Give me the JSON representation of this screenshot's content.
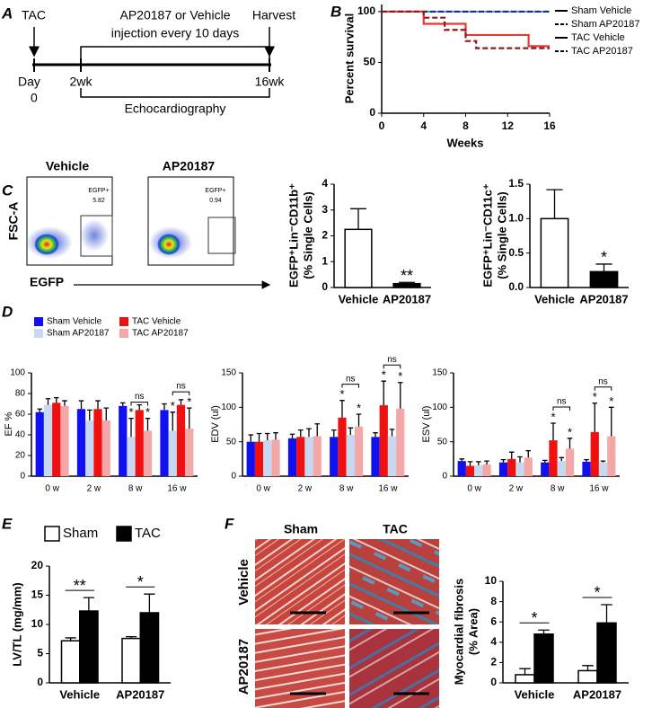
{
  "panels": [
    "A",
    "B",
    "C",
    "D",
    "E",
    "F"
  ],
  "timeline": {
    "start": "TAC",
    "treatment": [
      "AP20187 or Vehicle",
      "injection every 10 days"
    ],
    "end": "Harvest",
    "day_label": "Day",
    "day0": 0,
    "t1": "2wk",
    "t2": "16wk",
    "measure": "Echocardiography"
  },
  "flow": {
    "y_axis": "FSC-A",
    "x_axis": "EGFP",
    "gate": "EGFP+",
    "panels": [
      {
        "title": "Vehicle",
        "percent": 5.82
      },
      {
        "title": "AP20187",
        "percent": 0.94
      }
    ]
  },
  "histology": {
    "columns": [
      "Sham",
      "TAC"
    ],
    "rows": [
      "Vehicle",
      "AP20187"
    ]
  },
  "chart_data": [
    {
      "type": "line",
      "ylabel": "Percent survival",
      "xlabel": "Weeks",
      "xlim": [
        0,
        16
      ],
      "xticks": [
        0,
        4,
        8,
        12,
        16
      ],
      "ylim": [
        0,
        107
      ],
      "yticks": [
        0,
        50,
        100
      ],
      "legend": "upper right",
      "series": [
        {
          "name": "Sham Vehicle",
          "color": "#5b9bd5",
          "dash": false,
          "x": [
            0,
            16
          ],
          "values": [
            100,
            100
          ]
        },
        {
          "name": "Sham AP20187",
          "color": "#1c2f80",
          "dash": true,
          "x": [
            0,
            16
          ],
          "values": [
            100,
            100
          ]
        },
        {
          "name": "TAC Vehicle",
          "color": "#e53935",
          "dash": false,
          "x": [
            0,
            4,
            4,
            8,
            8,
            14,
            14,
            16
          ],
          "values": [
            100,
            100,
            88,
            88,
            77,
            77,
            66,
            66
          ]
        },
        {
          "name": "TAC AP20187",
          "color": "#8e1b1b",
          "dash": true,
          "x": [
            0,
            4,
            4,
            6,
            6,
            8,
            8,
            9,
            9,
            16
          ],
          "values": [
            100,
            100,
            94,
            94,
            82,
            82,
            71,
            71,
            64,
            64
          ]
        }
      ]
    },
    {
      "type": "bar",
      "ylabel": [
        "EGFP⁺Lin⁻CD11b⁺",
        "(% Single Cells)"
      ],
      "categories": [
        "Vehicle",
        "AP20187"
      ],
      "values": [
        2.25,
        0.15
      ],
      "errors": [
        0.8,
        0.05
      ],
      "colors": [
        "#ffffff",
        "#000000"
      ],
      "edgecolor": "#000000",
      "ylim": [
        0,
        4
      ],
      "yticks": [
        0,
        1,
        2,
        3,
        4
      ],
      "annotations": [
        {
          "text": "**",
          "category": 1
        }
      ]
    },
    {
      "type": "bar",
      "ylabel": [
        "EGFP⁺Lin⁻CD11c⁺",
        "(% Single Cells)"
      ],
      "categories": [
        "Vehicle",
        "AP20187"
      ],
      "values": [
        1.0,
        0.23
      ],
      "errors": [
        0.42,
        0.11
      ],
      "colors": [
        "#ffffff",
        "#000000"
      ],
      "edgecolor": "#000000",
      "ylim": [
        0,
        1.5
      ],
      "yticks": [
        {
          "value": 0,
          "label": "0.0"
        },
        {
          "value": 0.5,
          "label": "0.5"
        },
        {
          "value": 1,
          "label": "1.0"
        },
        {
          "value": 1.5,
          "label": "1.5"
        }
      ],
      "annotations": [
        {
          "text": "*",
          "category": 1
        }
      ]
    },
    {
      "type": "bar",
      "ylabel": "EF %",
      "categories": [
        "0 w",
        "2 w",
        "8 w",
        "16 w"
      ],
      "ylim": [
        0,
        100
      ],
      "yticks": [
        0,
        20,
        40,
        60,
        80,
        100
      ],
      "legend": "above",
      "series": [
        {
          "name": "Sham Vehicle",
          "color": "#1010f0",
          "values": [
            62,
            65,
            68,
            64
          ],
          "errors": [
            3,
            8,
            3,
            6
          ]
        },
        {
          "name": "Sham AP20187",
          "color": "#c6d9f0",
          "values": [
            69,
            54,
            38,
            44
          ],
          "errors": [
            6,
            10,
            18,
            18
          ]
        },
        {
          "name": "TAC Vehicle",
          "color": "#f01010",
          "values": [
            71,
            65,
            64,
            69
          ],
          "errors": [
            5,
            8,
            5,
            5
          ]
        },
        {
          "name": "TAC AP20187",
          "color": "#f4a7a7",
          "values": [
            68,
            54,
            44,
            46
          ],
          "errors": [
            5,
            12,
            12,
            20
          ]
        }
      ],
      "annotations": [
        {
          "text": "*",
          "category": 2,
          "series": 1
        },
        {
          "text": "*",
          "category": 2,
          "series": 3
        },
        {
          "text": "*",
          "category": 3,
          "series": 1
        },
        {
          "text": "*",
          "category": 3,
          "series": 3
        }
      ],
      "brackets": [
        {
          "text": "ns",
          "category": 2,
          "from": 1,
          "to": 3
        },
        {
          "text": "ns",
          "category": 3,
          "from": 1,
          "to": 3
        }
      ]
    },
    {
      "type": "bar",
      "ylabel": "EDV (ul)",
      "categories": [
        "0 w",
        "2 w",
        "8 w",
        "16 w"
      ],
      "ylim": [
        0,
        150
      ],
      "yticks": [
        0,
        50,
        100,
        150
      ],
      "series": [
        {
          "color": "#1010f0",
          "values": [
            50,
            55,
            57,
            57
          ],
          "errors": [
            10,
            6,
            10,
            6
          ]
        },
        {
          "color": "#f01010",
          "values": [
            50,
            57,
            85,
            103
          ],
          "errors": [
            12,
            10,
            25,
            35
          ]
        },
        {
          "color": "#c6d9f0",
          "values": [
            52,
            57,
            60,
            58
          ],
          "errors": [
            10,
            12,
            10,
            10
          ]
        },
        {
          "color": "#f4a7a7",
          "values": [
            53,
            58,
            72,
            98
          ],
          "errors": [
            10,
            18,
            18,
            38
          ]
        }
      ],
      "annotations": [
        {
          "text": "*",
          "category": 2,
          "series": 1
        },
        {
          "text": "*",
          "category": 2,
          "series": 3
        },
        {
          "text": "*",
          "category": 3,
          "series": 1
        },
        {
          "text": "*",
          "category": 3,
          "series": 3
        }
      ],
      "brackets": [
        {
          "text": "ns",
          "category": 2,
          "from": 1,
          "to": 3
        },
        {
          "text": "ns",
          "category": 3,
          "from": 1,
          "to": 3
        }
      ]
    },
    {
      "type": "bar",
      "ylabel": "ESV (ul)",
      "categories": [
        "0 w",
        "2 w",
        "8 w",
        "16 w"
      ],
      "ylim": [
        0,
        150
      ],
      "yticks": [
        0,
        50,
        100,
        150
      ],
      "series": [
        {
          "color": "#1010f0",
          "values": [
            22,
            20,
            20,
            21
          ],
          "errors": [
            3,
            4,
            3,
            3
          ]
        },
        {
          "color": "#f01010",
          "values": [
            15,
            25,
            52,
            64
          ],
          "errors": [
            6,
            10,
            25,
            42
          ]
        },
        {
          "color": "#c6d9f0",
          "values": [
            16,
            20,
            22,
            20
          ],
          "errors": [
            5,
            8,
            5,
            2
          ]
        },
        {
          "color": "#f4a7a7",
          "values": [
            17,
            27,
            40,
            58
          ],
          "errors": [
            5,
            10,
            15,
            42
          ]
        }
      ],
      "annotations": [
        {
          "text": "*",
          "category": 2,
          "series": 1
        },
        {
          "text": "*",
          "category": 2,
          "series": 3
        },
        {
          "text": "*",
          "category": 3,
          "series": 1
        },
        {
          "text": "*",
          "category": 3,
          "series": 3
        }
      ],
      "brackets": [
        {
          "text": "ns",
          "category": 2,
          "from": 1,
          "to": 3
        },
        {
          "text": "ns",
          "category": 3,
          "from": 1,
          "to": 3
        }
      ]
    },
    {
      "type": "bar",
      "ylabel": "LV/TL (mg/mm)",
      "categories": [
        "Vehicle",
        "AP20187"
      ],
      "ylim": [
        0,
        20
      ],
      "yticks": [
        0,
        5,
        10,
        15,
        20
      ],
      "legend": "above",
      "edgecolor": "#000000",
      "series": [
        {
          "name": "Sham",
          "color": "#ffffff",
          "values": [
            7.2,
            7.6
          ],
          "errors": [
            0.5,
            0.3
          ]
        },
        {
          "name": "TAC",
          "color": "#000000",
          "values": [
            12.3,
            12.0
          ],
          "errors": [
            2.3,
            3.2
          ]
        }
      ],
      "brackets": [
        {
          "text": "**",
          "category": 0,
          "from": 0,
          "to": 1
        },
        {
          "text": "*",
          "category": 1,
          "from": 0,
          "to": 1
        }
      ]
    },
    {
      "type": "bar",
      "ylabel": [
        "Myocardial fibrosis",
        "(% Area)"
      ],
      "categories": [
        "Vehicle",
        "AP20187"
      ],
      "ylim": [
        0,
        10
      ],
      "yticks": [
        0,
        2,
        4,
        6,
        8,
        10
      ],
      "edgecolor": "#000000",
      "series": [
        {
          "color": "#ffffff",
          "values": [
            0.8,
            1.2
          ],
          "errors": [
            0.6,
            0.5
          ]
        },
        {
          "color": "#000000",
          "values": [
            4.8,
            5.9
          ],
          "errors": [
            0.4,
            1.8
          ]
        }
      ],
      "brackets": [
        {
          "text": "*",
          "category": 0,
          "from": 0,
          "to": 1
        },
        {
          "text": "*",
          "category": 1,
          "from": 0,
          "to": 1
        }
      ]
    }
  ]
}
